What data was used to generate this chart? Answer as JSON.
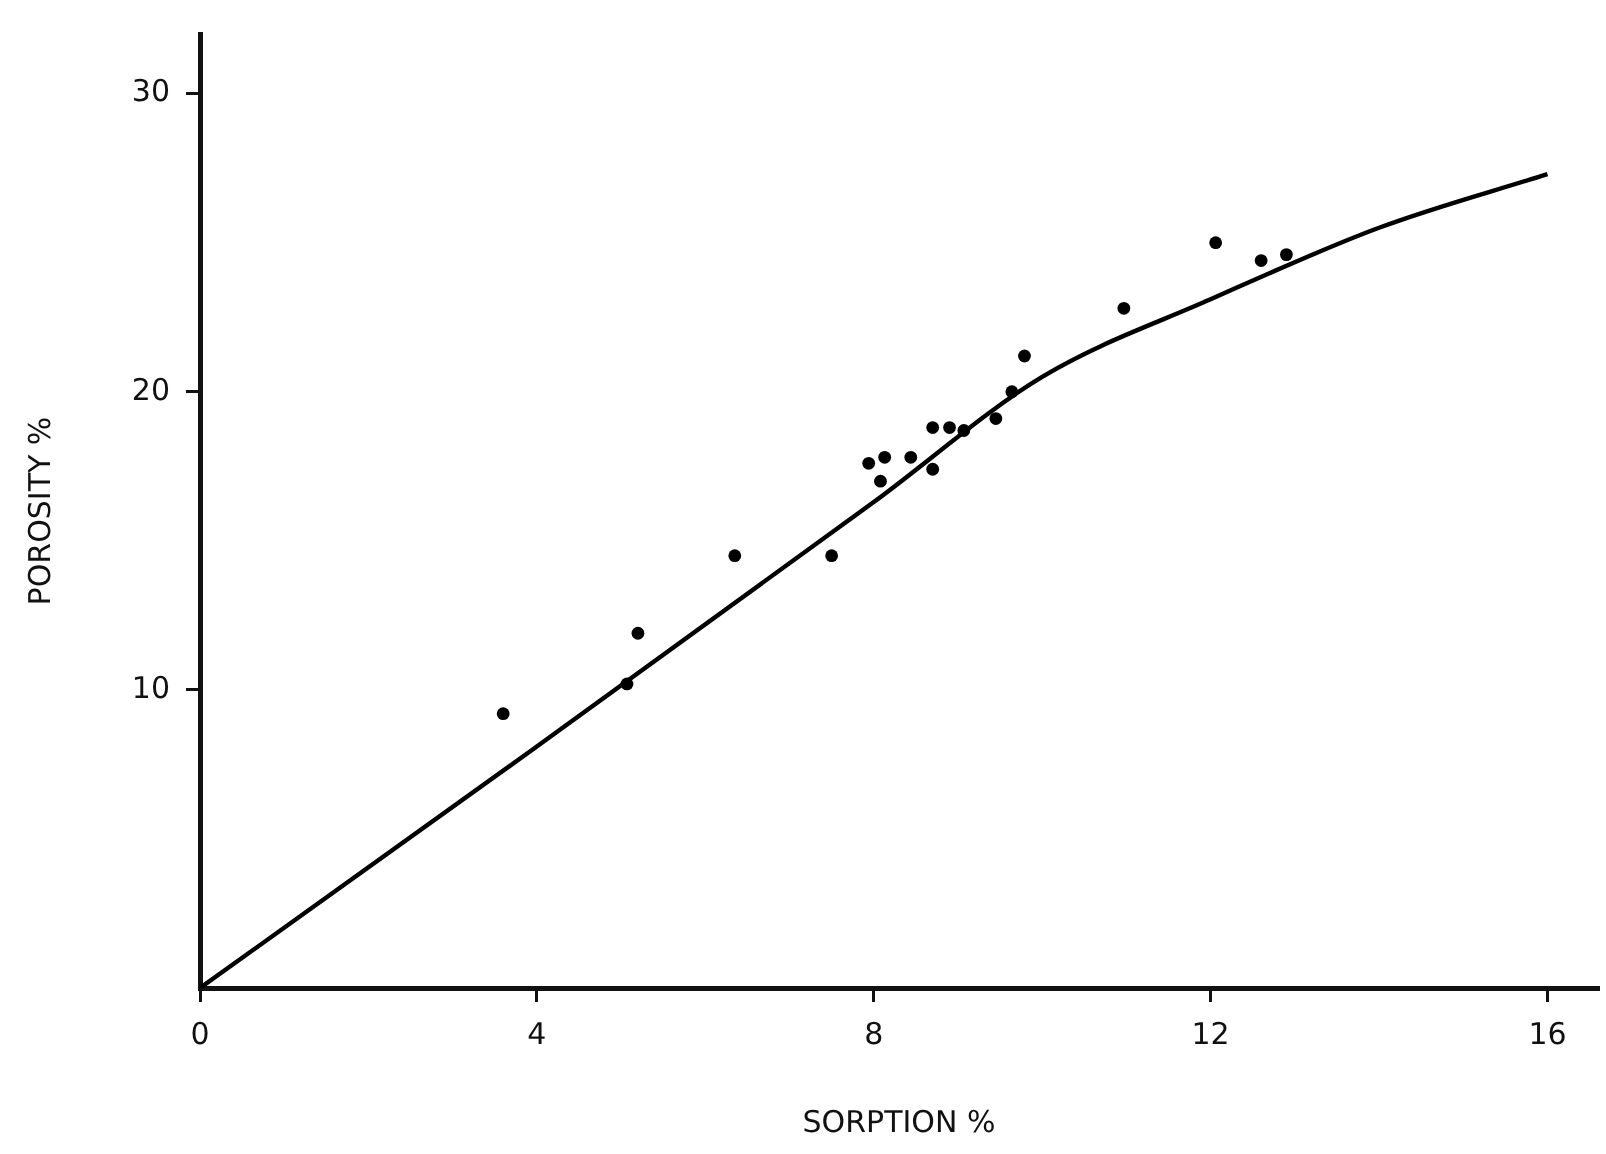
{
  "chart_data": {
    "type": "scatter",
    "xlabel": "SORPTION %",
    "ylabel": "POROSITY %",
    "xlim": [
      0,
      16.6
    ],
    "ylim": [
      0,
      32
    ],
    "xticks": [
      0,
      4,
      8,
      12,
      16
    ],
    "yticks": [
      10,
      20,
      30
    ],
    "grid": false,
    "legend": false,
    "marker": "circle",
    "series": [
      {
        "type": "scatter",
        "color": "#000000",
        "x": [
          3.6,
          5.07,
          5.2,
          6.35,
          7.5,
          7.94,
          8.13,
          8.08,
          8.44,
          8.7,
          8.7,
          8.9,
          9.07,
          9.45,
          9.64,
          9.79,
          10.97,
          12.06,
          12.6,
          12.9
        ],
        "values": [
          9.2,
          10.2,
          11.9,
          14.5,
          14.5,
          17.6,
          17.8,
          17.0,
          17.8,
          17.4,
          18.8,
          18.8,
          18.7,
          19.1,
          20.0,
          21.2,
          22.8,
          25.0,
          24.4,
          24.6
        ]
      },
      {
        "type": "line",
        "color": "#000000",
        "marker": "none",
        "x": [
          0,
          4,
          8,
          10,
          12,
          14,
          16
        ],
        "values": [
          0,
          8.1,
          16.3,
          20.5,
          23.1,
          25.5,
          27.3
        ]
      }
    ]
  }
}
